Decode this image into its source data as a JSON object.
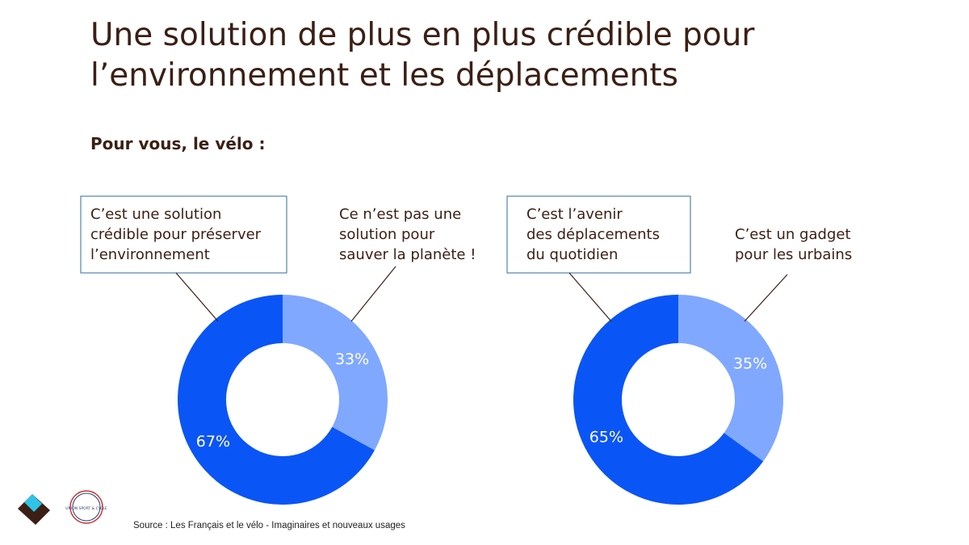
{
  "title": "Une solution de plus en plus crédible pour\nl’environnement et les déplacements",
  "subtitle": "Pour vous, le vélo :",
  "source": "Source : Les Français et le vélo - Imaginaires et nouveaux usages",
  "logo_text": "UNION SPORT & CYCLE",
  "chart_data": [
    {
      "type": "donut",
      "categories": [
        "C’est une solution\ncrédible pour préserver\nl’environnement",
        "Ce n’est pas une\nsolution pour\nsauver la planète !"
      ],
      "values": [
        67,
        33
      ],
      "value_labels": [
        "67%",
        "33%"
      ],
      "colors": [
        "#0a55f5",
        "#80a8ff"
      ]
    },
    {
      "type": "donut",
      "categories": [
        "C’est l’avenir\ndes déplacements\ndu quotidien",
        "C’est un gadget\npour les urbains"
      ],
      "values": [
        65,
        35
      ],
      "value_labels": [
        "65%",
        "35%"
      ],
      "colors": [
        "#0a55f5",
        "#80a8ff"
      ]
    }
  ]
}
